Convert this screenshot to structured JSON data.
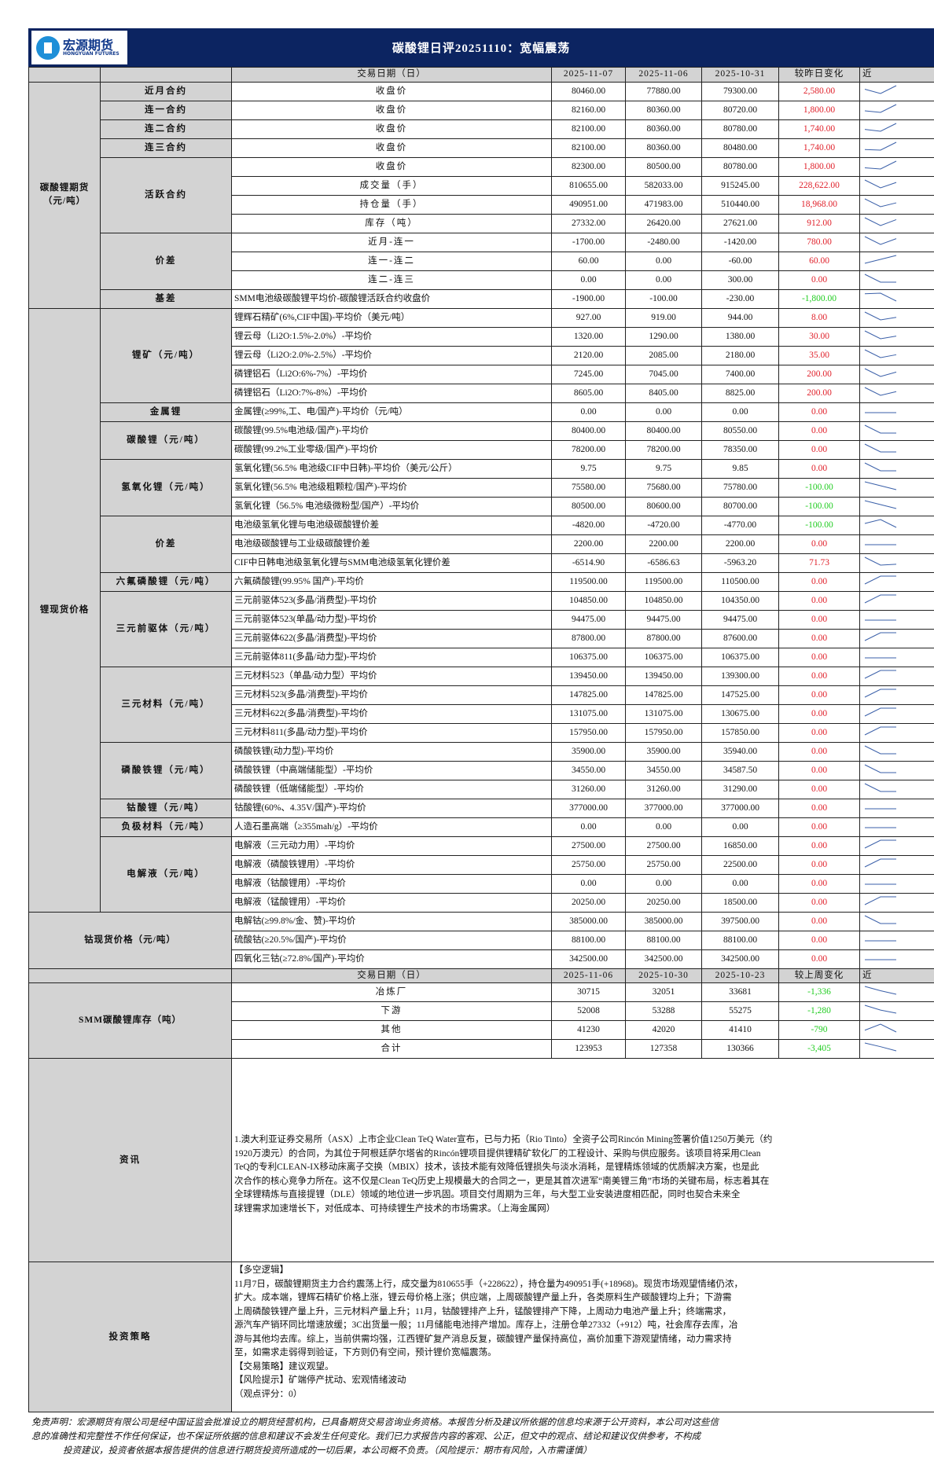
{
  "header": {
    "logo_cn": "宏源期货",
    "logo_en": "HONGYUAN FUTURES",
    "title": "碳酸锂日评20251110：宽幅震荡"
  },
  "colors": {
    "header_bg": "#0c2461",
    "label_bg": "#d3d3d3",
    "up": "#e0202a",
    "down": "#1fcc1f"
  },
  "daily_header": {
    "item": "交易日期（日）",
    "dates": [
      "2025-11-07",
      "2025-11-06",
      "2025-10-31"
    ],
    "change": "较昨日变化",
    "trend": "近"
  },
  "sections": [
    {
      "label": "碳酸锂期货（元/吨）",
      "groups": [
        {
          "label": "近月合约",
          "rows": [
            {
              "item": "收盘价",
              "values": [
                "80460.00",
                "77880.00",
                "79300.00"
              ],
              "change": "2,580.00"
            }
          ]
        },
        {
          "label": "连一合约",
          "rows": [
            {
              "item": "收盘价",
              "values": [
                "82160.00",
                "80360.00",
                "80720.00"
              ],
              "change": "1,800.00"
            }
          ]
        },
        {
          "label": "连二合约",
          "rows": [
            {
              "item": "收盘价",
              "values": [
                "82100.00",
                "80360.00",
                "80780.00"
              ],
              "change": "1,740.00"
            }
          ]
        },
        {
          "label": "连三合约",
          "rows": [
            {
              "item": "收盘价",
              "values": [
                "82100.00",
                "80360.00",
                "80480.00"
              ],
              "change": "1,740.00"
            }
          ]
        },
        {
          "label": "活跃合约",
          "rows": [
            {
              "item": "收盘价",
              "values": [
                "82300.00",
                "80500.00",
                "80780.00"
              ],
              "change": "1,800.00"
            },
            {
              "item": "成交量（手）",
              "values": [
                "810655.00",
                "582033.00",
                "915245.00"
              ],
              "change": "228,622.00"
            },
            {
              "item": "持仓量（手）",
              "values": [
                "490951.00",
                "471983.00",
                "510440.00"
              ],
              "change": "18,968.00"
            },
            {
              "item": "库存（吨）",
              "values": [
                "27332.00",
                "26420.00",
                "27621.00"
              ],
              "change": "912.00"
            }
          ]
        },
        {
          "label": "价差",
          "rows": [
            {
              "item": "近月-连一",
              "values": [
                "-1700.00",
                "-2480.00",
                "-1420.00"
              ],
              "change": "780.00"
            },
            {
              "item": "连一-连二",
              "values": [
                "60.00",
                "0.00",
                "-60.00"
              ],
              "change": "60.00"
            },
            {
              "item": "连二-连三",
              "values": [
                "0.00",
                "0.00",
                "300.00"
              ],
              "change": "0.00"
            }
          ]
        },
        {
          "label": "基差",
          "left": true,
          "rows": [
            {
              "item": "SMM电池级碳酸锂平均价-碳酸锂活跃合约收盘价",
              "values": [
                "-1900.00",
                "-100.00",
                "-230.00"
              ],
              "change": "-1,800.00"
            }
          ]
        }
      ]
    },
    {
      "label": "锂现货价格",
      "groups": [
        {
          "label": "锂矿（元/吨）",
          "rows": [
            {
              "item": "锂辉石精矿(6%,CIF中国)-平均价（美元/吨）",
              "values": [
                "927.00",
                "919.00",
                "944.00"
              ],
              "change": "8.00"
            },
            {
              "item": "锂云母（Li2O:1.5%-2.0%）-平均价",
              "values": [
                "1320.00",
                "1290.00",
                "1380.00"
              ],
              "change": "30.00"
            },
            {
              "item": "锂云母（Li2O:2.0%-2.5%）-平均价",
              "values": [
                "2120.00",
                "2085.00",
                "2180.00"
              ],
              "change": "35.00"
            },
            {
              "item": "磷锂铝石（Li2O:6%-7%）-平均价",
              "values": [
                "7245.00",
                "7045.00",
                "7400.00"
              ],
              "change": "200.00"
            },
            {
              "item": "磷锂铝石（Li2O:7%-8%）-平均价",
              "values": [
                "8605.00",
                "8405.00",
                "8825.00"
              ],
              "change": "200.00"
            }
          ]
        },
        {
          "label": "金属锂",
          "rows": [
            {
              "item": "金属锂(≥99%,工、电/国产)-平均价（元/吨）",
              "values": [
                "0.00",
                "0.00",
                "0.00"
              ],
              "change": "0.00"
            }
          ]
        },
        {
          "label": "碳酸锂（元/吨）",
          "rows": [
            {
              "item": "碳酸锂(99.5%电池级/国产)-平均价",
              "values": [
                "80400.00",
                "80400.00",
                "80550.00"
              ],
              "change": "0.00"
            },
            {
              "item": "碳酸锂(99.2%工业零级/国产)-平均价",
              "values": [
                "78200.00",
                "78200.00",
                "78350.00"
              ],
              "change": "0.00"
            }
          ]
        },
        {
          "label": "氢氧化锂（元/吨）",
          "rows": [
            {
              "item": "氢氧化锂(56.5% 电池级CIF中日韩)-平均价（美元/公斤）",
              "values": [
                "9.75",
                "9.75",
                "9.85"
              ],
              "change": "0.00"
            },
            {
              "item": "氢氧化锂(56.5% 电池级粗颗粒/国产)-平均价",
              "values": [
                "75580.00",
                "75680.00",
                "75780.00"
              ],
              "change": "-100.00"
            },
            {
              "item": "氢氧化锂（56.5% 电池级微粉型/国产）-平均价",
              "values": [
                "80500.00",
                "80600.00",
                "80700.00"
              ],
              "change": "-100.00"
            }
          ]
        },
        {
          "label": "价差",
          "rows": [
            {
              "item": "电池级氢氧化锂与电池级碳酸锂价差",
              "values": [
                "-4820.00",
                "-4720.00",
                "-4770.00"
              ],
              "change": "-100.00"
            },
            {
              "item": "电池级碳酸锂与工业级碳酸锂价差",
              "values": [
                "2200.00",
                "2200.00",
                "2200.00"
              ],
              "change": "0.00"
            },
            {
              "item": "CIF中日韩电池级氢氧化锂与SMM电池级氢氧化锂价差",
              "values": [
                "-6514.90",
                "-6586.63",
                "-5963.20"
              ],
              "change": "71.73"
            }
          ]
        },
        {
          "label": "六氟磷酸锂（元/吨）",
          "rows": [
            {
              "item": "六氟磷酸锂(99.95% 国产)-平均价",
              "values": [
                "119500.00",
                "119500.00",
                "110500.00"
              ],
              "change": "0.00"
            }
          ]
        },
        {
          "label": "三元前驱体（元/吨）",
          "rows": [
            {
              "item": "三元前驱体523(多晶/消费型)-平均价",
              "values": [
                "104850.00",
                "104850.00",
                "104350.00"
              ],
              "change": "0.00"
            },
            {
              "item": "三元前驱体523(单晶/动力型)-平均价",
              "values": [
                "94475.00",
                "94475.00",
                "94475.00"
              ],
              "change": "0.00"
            },
            {
              "item": "三元前驱体622(多晶/消费型)-平均价",
              "values": [
                "87800.00",
                "87800.00",
                "87600.00"
              ],
              "change": "0.00"
            },
            {
              "item": "三元前驱体811(多晶/动力型)-平均价",
              "values": [
                "106375.00",
                "106375.00",
                "106375.00"
              ],
              "change": "0.00"
            }
          ]
        },
        {
          "label": "三元材料（元/吨）",
          "rows": [
            {
              "item": "三元材料523（单晶/动力型）平均价",
              "values": [
                "139450.00",
                "139450.00",
                "139300.00"
              ],
              "change": "0.00"
            },
            {
              "item": "三元材料523(多晶/消费型)-平均价",
              "values": [
                "147825.00",
                "147825.00",
                "147525.00"
              ],
              "change": "0.00"
            },
            {
              "item": "三元材料622(多晶/消费型)-平均价",
              "values": [
                "131075.00",
                "131075.00",
                "130675.00"
              ],
              "change": "0.00"
            },
            {
              "item": "三元材料811(多晶/动力型)-平均价",
              "values": [
                "157950.00",
                "157950.00",
                "157850.00"
              ],
              "change": "0.00"
            }
          ]
        },
        {
          "label": "磷酸铁锂（元/吨）",
          "rows": [
            {
              "item": "磷酸铁锂(动力型)-平均价",
              "values": [
                "35900.00",
                "35900.00",
                "35940.00"
              ],
              "change": "0.00"
            },
            {
              "item": "磷酸铁锂（中高端储能型）-平均价",
              "values": [
                "34550.00",
                "34550.00",
                "34587.50"
              ],
              "change": "0.00"
            },
            {
              "item": "磷酸铁锂（低端储能型）-平均价",
              "values": [
                "31260.00",
                "31260.00",
                "31290.00"
              ],
              "change": "0.00"
            }
          ]
        },
        {
          "label": "钴酸锂（元/吨）",
          "rows": [
            {
              "item": "钴酸锂(60%、4.35V/国产)-平均价",
              "values": [
                "377000.00",
                "377000.00",
                "377000.00"
              ],
              "change": "0.00"
            }
          ]
        },
        {
          "label": "负极材料（元/吨）",
          "rows": [
            {
              "item": "人造石墨高端（≥355mah/g）-平均价",
              "values": [
                "0.00",
                "0.00",
                "0.00"
              ],
              "change": "0.00"
            }
          ]
        },
        {
          "label": "电解液（元/吨）",
          "rows": [
            {
              "item": "电解液（三元动力用）-平均价",
              "values": [
                "27500.00",
                "27500.00",
                "16850.00"
              ],
              "change": "0.00"
            },
            {
              "item": "电解液（磷酸铁锂用）-平均价",
              "values": [
                "25750.00",
                "25750.00",
                "22500.00"
              ],
              "change": "0.00"
            },
            {
              "item": "电解液（钴酸锂用）-平均价",
              "values": [
                "0.00",
                "0.00",
                "0.00"
              ],
              "change": "0.00"
            },
            {
              "item": "电解液（锰酸锂用）-平均价",
              "values": [
                "20250.00",
                "20250.00",
                "18500.00"
              ],
              "change": "0.00"
            }
          ]
        }
      ]
    },
    {
      "label": "钴现货价格（元/吨）",
      "groups": [
        {
          "label": null,
          "rows": [
            {
              "item": "电解钴(≥99.8%/金、赞)-平均价",
              "values": [
                "385000.00",
                "385000.00",
                "397500.00"
              ],
              "change": "0.00"
            },
            {
              "item": "硫酸钴(≥20.5%/国产)-平均价",
              "values": [
                "88100.00",
                "88100.00",
                "88100.00"
              ],
              "change": "0.00"
            },
            {
              "item": "四氧化三钴(≥72.8%/国产)-平均价",
              "values": [
                "342500.00",
                "342500.00",
                "342500.00"
              ],
              "change": "0.00"
            }
          ]
        }
      ]
    }
  ],
  "inventory": {
    "header": {
      "item": "交易日期（日）",
      "dates": [
        "2025-11-06",
        "2025-10-30",
        "2025-10-23"
      ],
      "change": "较上周变化",
      "trend": "近"
    },
    "label": "SMM碳酸锂库存（吨）",
    "rows": [
      {
        "item": "冶炼厂",
        "values": [
          "30715",
          "32051",
          "33681"
        ],
        "change": "-1,336"
      },
      {
        "item": "下游",
        "values": [
          "52008",
          "53288",
          "55275"
        ],
        "change": "-1,280"
      },
      {
        "item": "其他",
        "values": [
          "41230",
          "42020",
          "41410"
        ],
        "change": "-790"
      },
      {
        "item": "合计",
        "values": [
          "123953",
          "127358",
          "130366"
        ],
        "change": "-3,405"
      }
    ]
  },
  "news": {
    "label": "资讯",
    "lines": [
      "1.澳大利亚证券交易所（ASX）上市企业Clean TeQ Water宣布，已与力拓（Rio Tinto）全资子公司Rincón Mining签署价值1250万美元（约",
      "1920万澳元）的合同，为其位于阿根廷萨尔塔省的Rincón锂项目提供锂精矿软化厂的工程设计、采购与供应服务。该项目将采用Clean",
      "TeQ的专利CLEAN-IX移动床离子交换（MBIX）技术，该技术能有效降低锂损失与淡水消耗，是锂精炼领域的优质解决方案，也是此",
      "次合作的核心竞争力所在。这不仅是Clean TeQ历史上规模最大的合同之一，更是其首次进军“南美锂三角”市场的关键布局，标志着其在",
      "全球锂精炼与直接提锂（DLE）领域的地位进一步巩固。项目交付周期为三年，与大型工业安装进度相匹配，同时也契合未来全",
      "球锂需求加速增长下，对低成本、可持续锂生产技术的市场需求。（上海金属网）"
    ]
  },
  "strategy": {
    "label": "投资策略",
    "lines": [
      "【多空逻辑】",
      "11月7日，碳酸锂期货主力合约震荡上行，成交量为810655手（+228622），持仓量为490951手(+18968)。现货市场观望情绪仍浓，",
      "扩大。成本端，锂辉石精矿价格上涨，锂云母价格上涨；供应端，上周碳酸锂产量上升，各类原料生产碳酸锂均上升；下游需",
      "上周磷酸铁锂产量上升，三元材料产量上升；11月，钴酸锂排产上升，锰酸锂排产下降，上周动力电池产量上升；终端需求，",
      "源汽车产销环同比增速放缓；3C出货量一般；11月储能电池排产增加。库存上，注册仓单27332（+912）吨，社会库存去库，冶",
      "游与其他均去库。综上，当前供需均强，江西锂矿复产消息反复，碳酸锂产量保持高位，高价加重下游观望情绪，动力需求持",
      "至，如需求走弱得到验证，下方则仍有空间，预计锂价宽幅震荡。",
      "【交易策略】建议观望。",
      "【风险提示】矿端停产扰动、宏观情绪波动",
      "（观点评分：0）"
    ]
  },
  "disclaimer": [
    "免责声明：宏源期货有限公司是经中国证监会批准设立的期货经营机构，已具备期货交易咨询业务资格。本报告分析及建议所依据的信息均来源于公开资料，本公司对这些信",
    "息的准确性和完整性不作任何保证，也不保证所依据的信息和建议不会发生任何变化。我们已力求报告内容的客观、公正，但文中的观点、结论和建议仅供参考，不构成",
    "投资建议，投资者依据本报告提供的信息进行期货投资所造成的一切后果，本公司概不负责。（风险提示：期市有风险，入市需谨慎）"
  ]
}
